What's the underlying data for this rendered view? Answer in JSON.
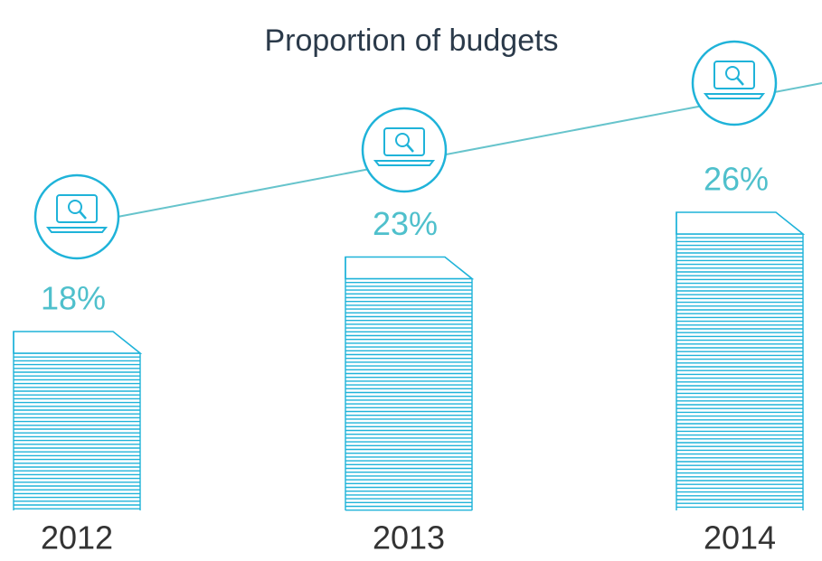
{
  "chart_data": {
    "type": "bar",
    "title": "Proportion of budgets",
    "categories": [
      "2012",
      "2013",
      "2014"
    ],
    "values": [
      18,
      23,
      26
    ],
    "value_labels": [
      "18%",
      "23%",
      "26%"
    ],
    "color": "#1fb3d9",
    "ylim": [
      6,
      28
    ]
  }
}
